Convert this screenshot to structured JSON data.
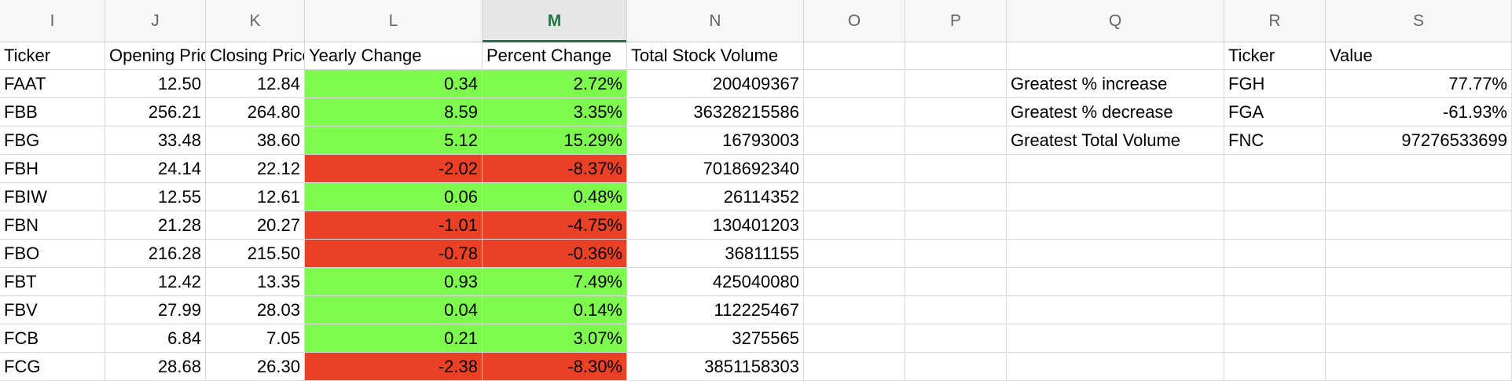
{
  "columns": [
    "I",
    "J",
    "K",
    "L",
    "M",
    "N",
    "O",
    "P",
    "Q",
    "R",
    "S"
  ],
  "active_column": "M",
  "colors": {
    "positive_fill": "#7ef94d",
    "negative_fill": "#ea4026",
    "active_header": "#217346"
  },
  "table": {
    "headers": [
      "Ticker",
      "Opening Price",
      "Closing Price",
      "Yearly Change",
      "Percent Change",
      "Total Stock Volume"
    ],
    "rows": [
      {
        "ticker": "FAAT",
        "open": "12.50",
        "close": "12.84",
        "change": "0.34",
        "pct": "2.72%",
        "volume": "200409367",
        "positive": true
      },
      {
        "ticker": "FBB",
        "open": "256.21",
        "close": "264.80",
        "change": "8.59",
        "pct": "3.35%",
        "volume": "36328215586",
        "positive": true
      },
      {
        "ticker": "FBG",
        "open": "33.48",
        "close": "38.60",
        "change": "5.12",
        "pct": "15.29%",
        "volume": "16793003",
        "positive": true
      },
      {
        "ticker": "FBH",
        "open": "24.14",
        "close": "22.12",
        "change": "-2.02",
        "pct": "-8.37%",
        "volume": "7018692340",
        "positive": false
      },
      {
        "ticker": "FBIW",
        "open": "12.55",
        "close": "12.61",
        "change": "0.06",
        "pct": "0.48%",
        "volume": "26114352",
        "positive": true
      },
      {
        "ticker": "FBN",
        "open": "21.28",
        "close": "20.27",
        "change": "-1.01",
        "pct": "-4.75%",
        "volume": "130401203",
        "positive": false
      },
      {
        "ticker": "FBO",
        "open": "216.28",
        "close": "215.50",
        "change": "-0.78",
        "pct": "-0.36%",
        "volume": "36811155",
        "positive": false
      },
      {
        "ticker": "FBT",
        "open": "12.42",
        "close": "13.35",
        "change": "0.93",
        "pct": "7.49%",
        "volume": "425040080",
        "positive": true
      },
      {
        "ticker": "FBV",
        "open": "27.99",
        "close": "28.03",
        "change": "0.04",
        "pct": "0.14%",
        "volume": "112225467",
        "positive": true
      },
      {
        "ticker": "FCB",
        "open": "6.84",
        "close": "7.05",
        "change": "0.21",
        "pct": "3.07%",
        "volume": "3275565",
        "positive": true
      },
      {
        "ticker": "FCG",
        "open": "28.68",
        "close": "26.30",
        "change": "-2.38",
        "pct": "-8.30%",
        "volume": "3851158303",
        "positive": false
      }
    ]
  },
  "summary": {
    "headers": [
      "Ticker",
      "Value"
    ],
    "rows": [
      {
        "label": "Greatest % increase",
        "ticker": "FGH",
        "value": "77.77%"
      },
      {
        "label": "Greatest % decrease",
        "ticker": "FGA",
        "value": "-61.93%"
      },
      {
        "label": "Greatest Total Volume",
        "ticker": "FNC",
        "value": "97276533699"
      }
    ]
  }
}
